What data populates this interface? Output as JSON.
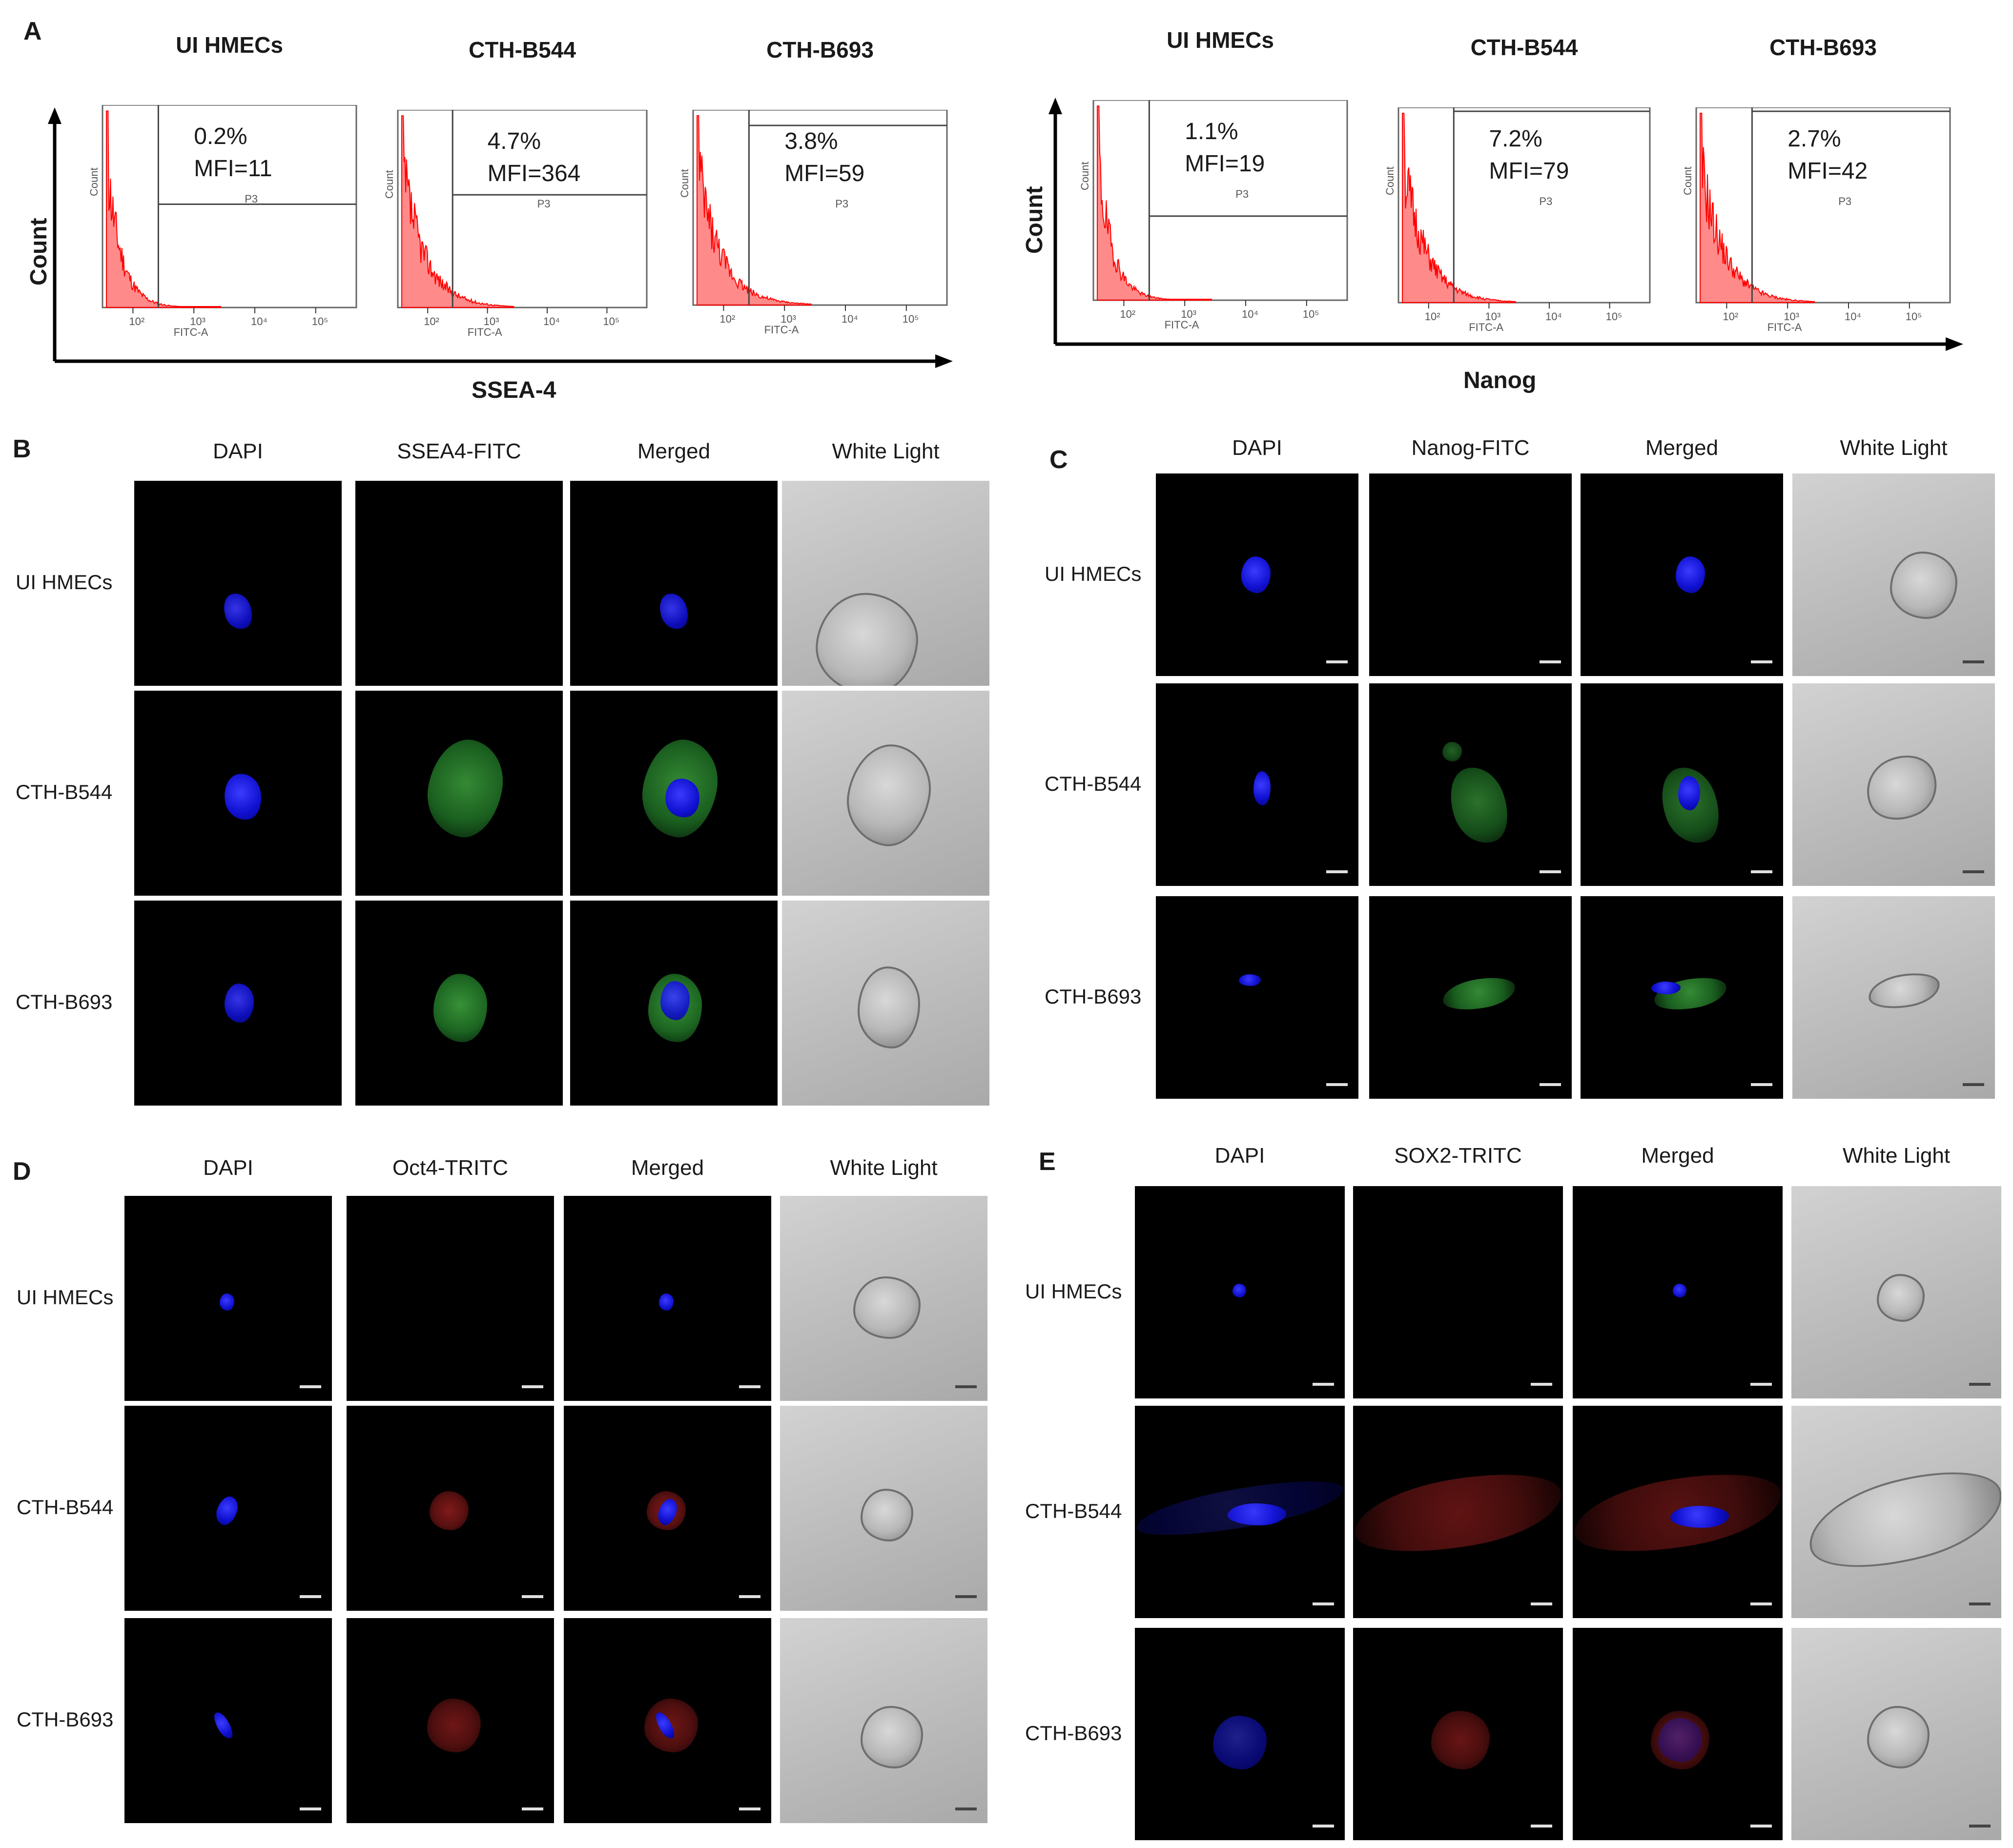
{
  "panel_a": {
    "letter": "A",
    "ssea4": {
      "axis_x": "SSEA-4",
      "axis_y": "Count",
      "plots": [
        {
          "sample": "UI HMECs",
          "percent": "0.2%",
          "mfi": "MFI=11",
          "gate": "P3",
          "xlabel": "FITC-A",
          "ylabel": "Count"
        },
        {
          "sample": "CTH-B544",
          "percent": "4.7%",
          "mfi": "MFI=364",
          "gate": "P3",
          "xlabel": "FITC-A",
          "ylabel": "Count"
        },
        {
          "sample": "CTH-B693",
          "percent": "3.8%",
          "mfi": "MFI=59",
          "gate": "P3",
          "xlabel": "FITC-A",
          "ylabel": "Count"
        }
      ]
    },
    "nanog": {
      "axis_x": "Nanog",
      "axis_y": "Count",
      "plots": [
        {
          "sample": "UI HMECs",
          "percent": "1.1%",
          "mfi": "MFI=19",
          "gate": "P3",
          "xlabel": "FITC-A",
          "ylabel": "Count"
        },
        {
          "sample": "CTH-B544",
          "percent": "7.2%",
          "mfi": "MFI=79",
          "gate": "P3",
          "xlabel": "FITC-A",
          "ylabel": "Count"
        },
        {
          "sample": "CTH-B693",
          "percent": "2.7%",
          "mfi": "MFI=42",
          "gate": "P3",
          "xlabel": "FITC-A",
          "ylabel": "Count"
        }
      ]
    },
    "tick_labels": [
      "10²",
      "10³",
      "10⁴",
      "10⁵"
    ]
  },
  "panel_b": {
    "letter": "B",
    "columns": [
      "DAPI",
      "SSEA4-FITC",
      "Merged",
      "White Light"
    ],
    "rows": [
      "UI HMECs",
      "CTH-B544",
      "CTH-B693"
    ]
  },
  "panel_c": {
    "letter": "C",
    "columns": [
      "DAPI",
      "Nanog-FITC",
      "Merged",
      "White Light"
    ],
    "rows": [
      "UI HMECs",
      "CTH-B544",
      "CTH-B693"
    ]
  },
  "panel_d": {
    "letter": "D",
    "columns": [
      "DAPI",
      "Oct4-TRITC",
      "Merged",
      "White Light"
    ],
    "rows": [
      "UI HMECs",
      "CTH-B544",
      "CTH-B693"
    ]
  },
  "panel_e": {
    "letter": "E",
    "columns": [
      "DAPI",
      "SOX2-TRITC",
      "Merged",
      "White Light"
    ],
    "rows": [
      "UI HMECs",
      "CTH-B544",
      "CTH-B693"
    ]
  },
  "colors": {
    "dapi": "#1a1aff",
    "fitc": "#2e8b35",
    "tritc": "#9b1c1c",
    "histogram": "#ff2a2a",
    "brightfield": "#bdbdbd"
  }
}
